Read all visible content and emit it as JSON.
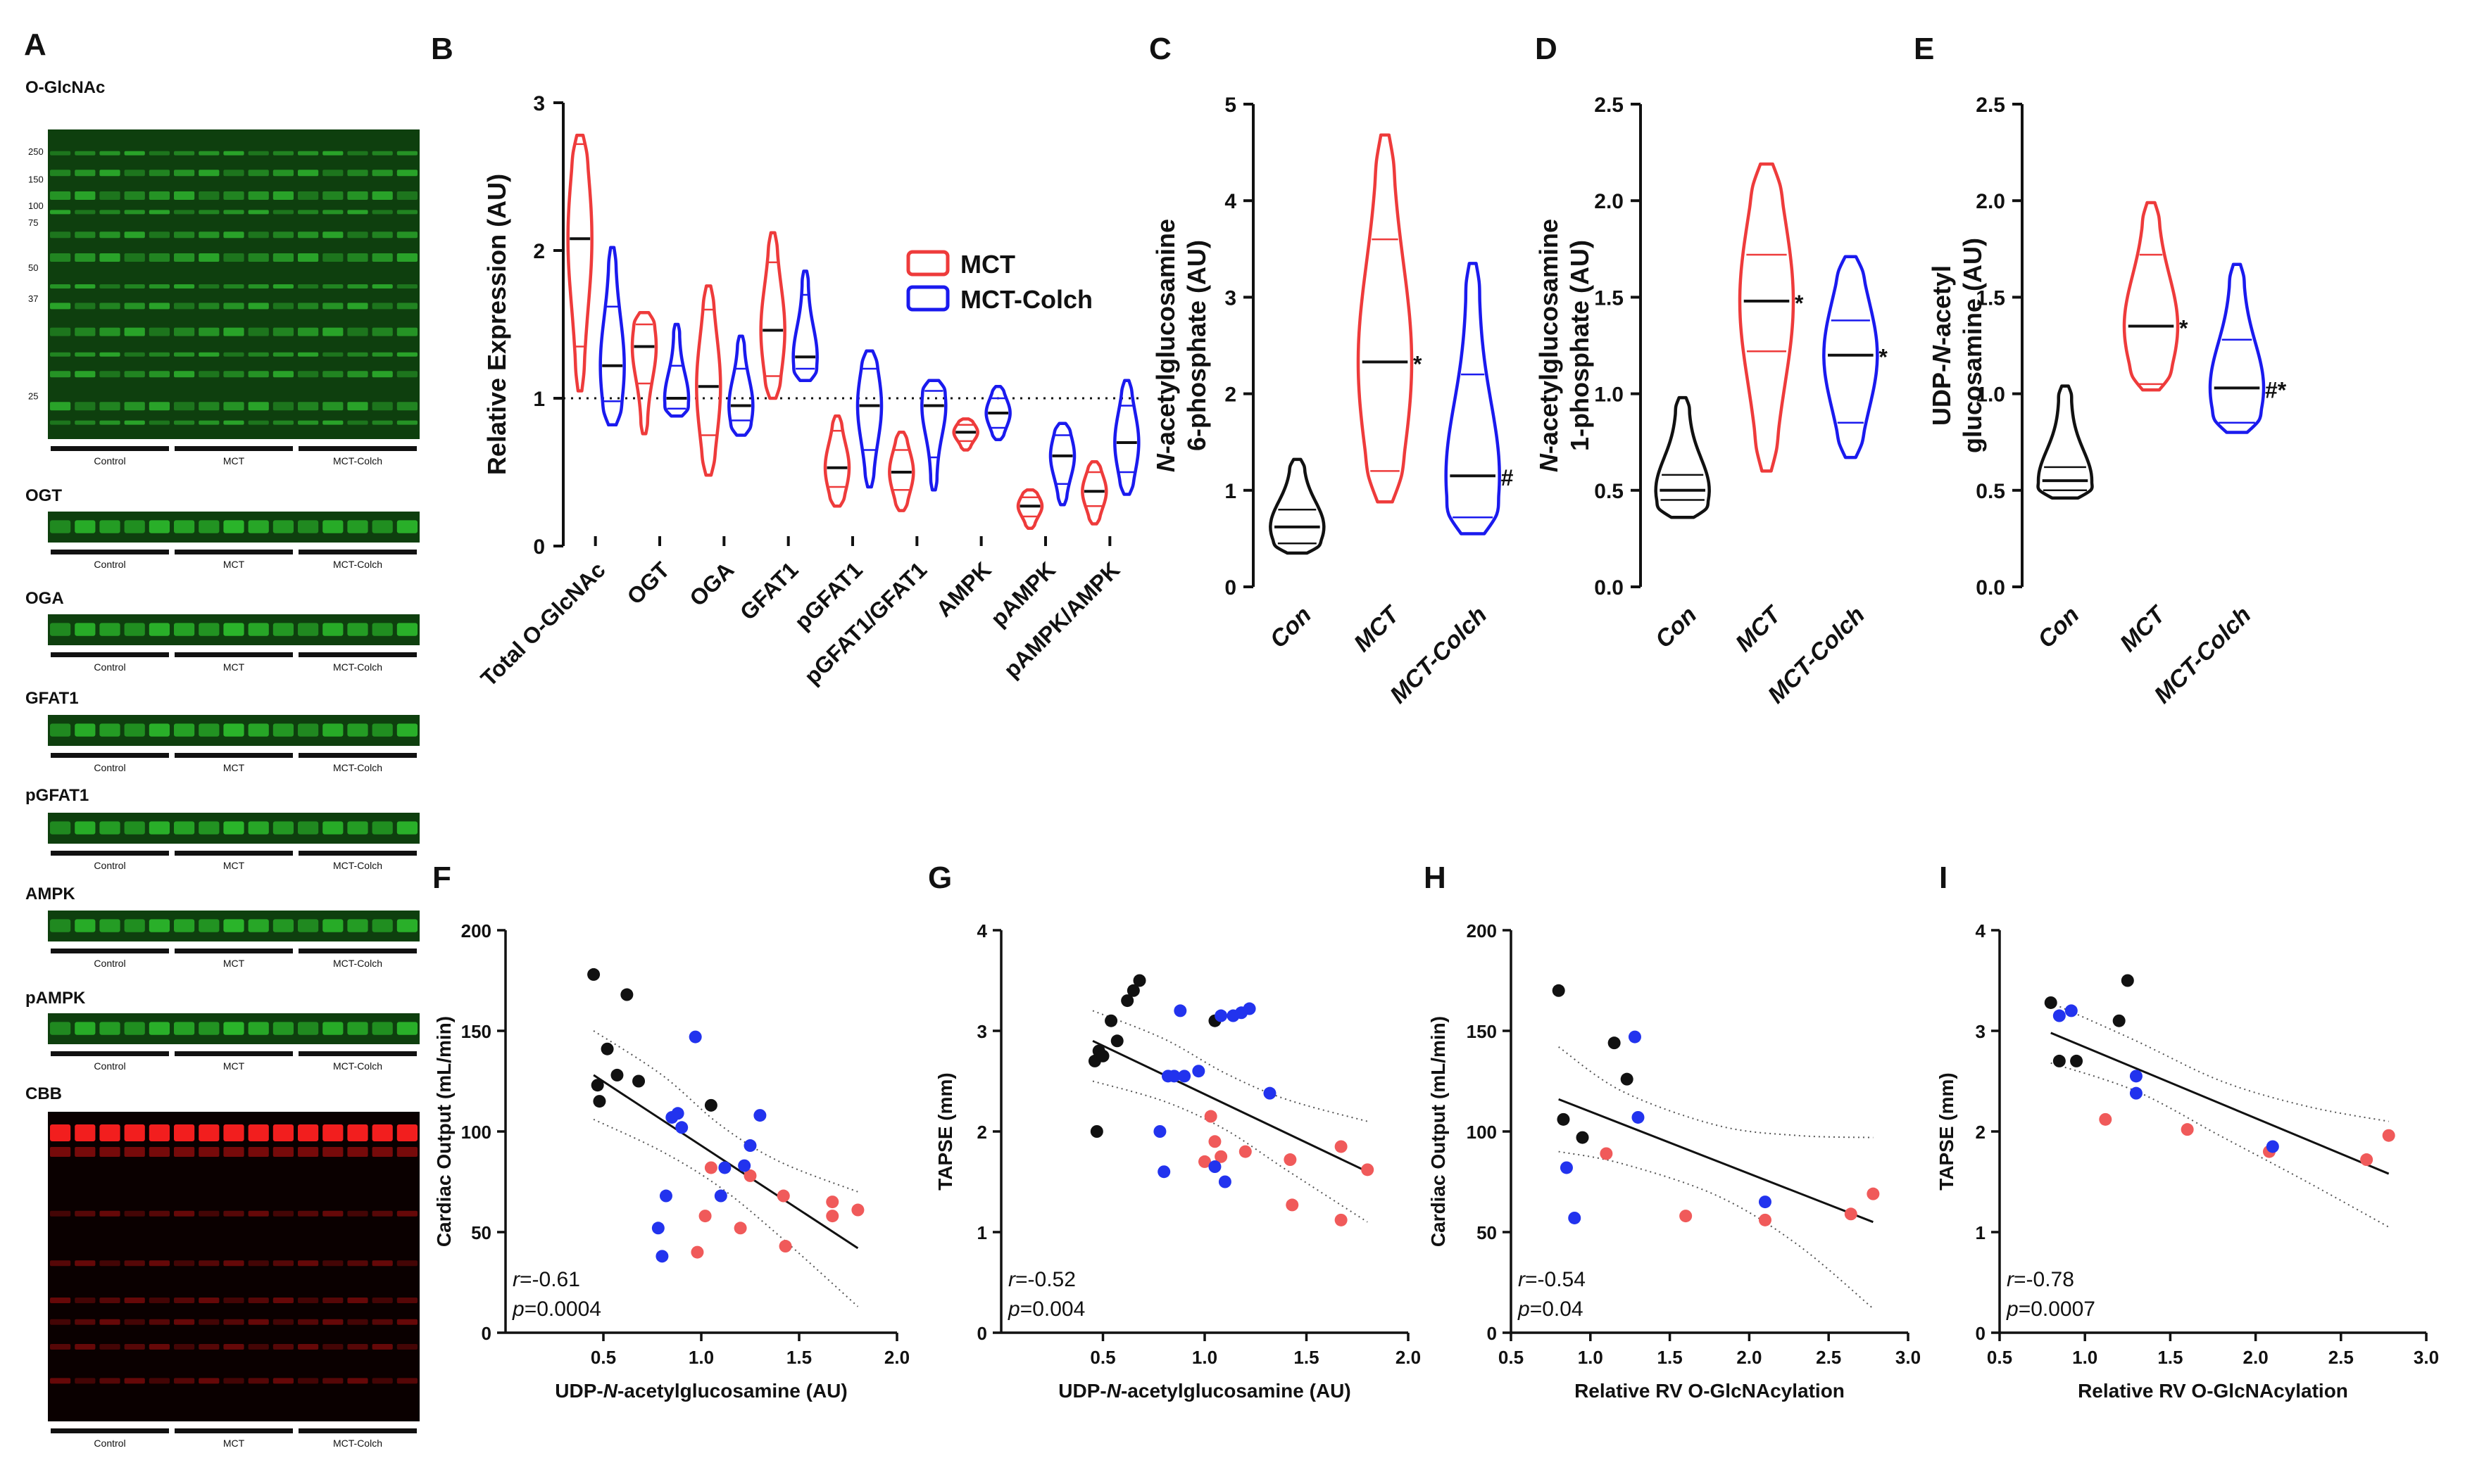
{
  "colors": {
    "con": "#111111",
    "mct": "#ee3b3b",
    "colch": "#1a1aee",
    "mct_dot": "#f05a5a",
    "colch_dot": "#2233ee"
  },
  "panel_letters": [
    "A",
    "B",
    "C",
    "D",
    "E",
    "F",
    "G",
    "H",
    "I"
  ],
  "blots": [
    {
      "name": "O-GlcNAc",
      "kind": "main",
      "color": "green",
      "markers": [
        "250",
        "150",
        "100",
        "75",
        "50",
        "37",
        "25"
      ],
      "groups": [
        "Control",
        "MCT",
        "MCT-Colch"
      ]
    },
    {
      "name": "OGT",
      "kind": "strip",
      "color": "green",
      "groups": [
        "Control",
        "MCT",
        "MCT-Colch"
      ]
    },
    {
      "name": "OGA",
      "kind": "strip",
      "color": "green",
      "groups": [
        "Control",
        "MCT",
        "MCT-Colch"
      ]
    },
    {
      "name": "GFAT1",
      "kind": "strip",
      "color": "green",
      "groups": [
        "Control",
        "MCT",
        "MCT-Colch"
      ]
    },
    {
      "name": "pGFAT1",
      "kind": "strip",
      "color": "green",
      "groups": [
        "Control",
        "MCT",
        "MCT-Colch"
      ]
    },
    {
      "name": "AMPK",
      "kind": "strip",
      "color": "green",
      "groups": [
        "Control",
        "MCT",
        "MCT-Colch"
      ]
    },
    {
      "name": "pAMPK",
      "kind": "strip",
      "color": "green",
      "groups": [
        "Control",
        "MCT",
        "MCT-Colch"
      ]
    },
    {
      "name": "CBB",
      "kind": "main",
      "color": "red",
      "groups": [
        "Control",
        "MCT",
        "MCT-Colch"
      ]
    }
  ],
  "chart_data": [
    {
      "panel": "B",
      "type": "violin",
      "title": "",
      "ylabel": "Relative Expression (AU)",
      "ylim": [
        0,
        3
      ],
      "yticks": [
        0,
        1,
        2,
        3
      ],
      "reference_line": 1,
      "categories": [
        "Total O-GlcNAc",
        "OGT",
        "OGA",
        "GFAT1",
        "pGFAT1",
        "pGFAT1/GFAT1",
        "AMPK",
        "pAMPK",
        "pAMPK/AMPK"
      ],
      "legend": [
        "MCT",
        "MCT-Colch"
      ],
      "series": [
        {
          "name": "MCT",
          "color": "#ee3b3b",
          "violins": [
            {
              "min": 1.05,
              "max": 2.78,
              "median": 2.08,
              "q1": 1.35,
              "q3": 2.72
            },
            {
              "min": 0.76,
              "max": 1.58,
              "median": 1.35,
              "q1": 1.1,
              "q3": 1.5
            },
            {
              "min": 0.48,
              "max": 1.76,
              "median": 1.08,
              "q1": 0.75,
              "q3": 1.6
            },
            {
              "min": 1.0,
              "max": 2.12,
              "median": 1.46,
              "q1": 1.15,
              "q3": 1.92
            },
            {
              "min": 0.27,
              "max": 0.88,
              "median": 0.53,
              "q1": 0.4,
              "q3": 0.78
            },
            {
              "min": 0.24,
              "max": 0.77,
              "median": 0.5,
              "q1": 0.38,
              "q3": 0.65
            },
            {
              "min": 0.65,
              "max": 0.86,
              "median": 0.77,
              "q1": 0.71,
              "q3": 0.82
            },
            {
              "min": 0.12,
              "max": 0.38,
              "median": 0.27,
              "q1": 0.2,
              "q3": 0.33
            },
            {
              "min": 0.15,
              "max": 0.57,
              "median": 0.37,
              "q1": 0.27,
              "q3": 0.5
            }
          ]
        },
        {
          "name": "MCT-Colch",
          "color": "#1a1aee",
          "violins": [
            {
              "min": 0.82,
              "max": 2.02,
              "median": 1.22,
              "q1": 0.98,
              "q3": 1.62
            },
            {
              "min": 0.88,
              "max": 1.5,
              "median": 1.0,
              "q1": 0.93,
              "q3": 1.22
            },
            {
              "min": 0.75,
              "max": 1.42,
              "median": 0.95,
              "q1": 0.85,
              "q3": 1.2
            },
            {
              "min": 1.12,
              "max": 1.86,
              "median": 1.28,
              "q1": 1.2,
              "q3": 1.7
            },
            {
              "min": 0.4,
              "max": 1.32,
              "median": 0.95,
              "q1": 0.65,
              "q3": 1.2
            },
            {
              "min": 0.38,
              "max": 1.12,
              "median": 0.95,
              "q1": 0.6,
              "q3": 1.05
            },
            {
              "min": 0.72,
              "max": 1.08,
              "median": 0.9,
              "q1": 0.8,
              "q3": 1.0
            },
            {
              "min": 0.28,
              "max": 0.83,
              "median": 0.61,
              "q1": 0.42,
              "q3": 0.75
            },
            {
              "min": 0.35,
              "max": 1.12,
              "median": 0.7,
              "q1": 0.5,
              "q3": 0.95
            }
          ]
        }
      ]
    },
    {
      "panel": "C",
      "type": "violin",
      "ylabel_lines": [
        "N-acetylglucosamine",
        "6-phosphate (AU)"
      ],
      "ylim": [
        0,
        5
      ],
      "yticks": [
        0,
        1,
        2,
        3,
        4,
        5
      ],
      "categories": [
        "Con",
        "MCT",
        "MCT-Colch"
      ],
      "violins": [
        {
          "group": "Con",
          "color": "#111111",
          "min": 0.35,
          "max": 1.32,
          "median": 0.62,
          "q1": 0.45,
          "q3": 0.8,
          "sig": ""
        },
        {
          "group": "MCT",
          "color": "#ee3b3b",
          "min": 0.88,
          "max": 4.68,
          "median": 2.33,
          "q1": 1.2,
          "q3": 3.6,
          "sig": "*"
        },
        {
          "group": "MCT-Colch",
          "color": "#1a1aee",
          "min": 0.55,
          "max": 3.35,
          "median": 1.15,
          "q1": 0.72,
          "q3": 2.2,
          "sig": "#"
        }
      ]
    },
    {
      "panel": "D",
      "type": "violin",
      "ylabel_lines": [
        "N-acetylglucosamine",
        "1-phosphate (AU)"
      ],
      "ylim": [
        0,
        2.5
      ],
      "yticks": [
        0.0,
        0.5,
        1.0,
        1.5,
        2.0,
        2.5
      ],
      "categories": [
        "Con",
        "MCT",
        "MCT-Colch"
      ],
      "violins": [
        {
          "group": "Con",
          "color": "#111111",
          "min": 0.36,
          "max": 0.98,
          "median": 0.5,
          "q1": 0.45,
          "q3": 0.58,
          "sig": ""
        },
        {
          "group": "MCT",
          "color": "#ee3b3b",
          "min": 0.6,
          "max": 2.19,
          "median": 1.48,
          "q1": 1.22,
          "q3": 1.72,
          "sig": "*"
        },
        {
          "group": "MCT-Colch",
          "color": "#1a1aee",
          "min": 0.67,
          "max": 1.71,
          "median": 1.2,
          "q1": 0.85,
          "q3": 1.38,
          "sig": "*"
        }
      ]
    },
    {
      "panel": "E",
      "type": "violin",
      "ylabel_lines": [
        "UDP-N-acetyl",
        "glucosamine (AU)"
      ],
      "ylim": [
        0,
        2.5
      ],
      "yticks": [
        0.0,
        0.5,
        1.0,
        1.5,
        2.0,
        2.5
      ],
      "categories": [
        "Con",
        "MCT",
        "MCT-Colch"
      ],
      "violins": [
        {
          "group": "Con",
          "color": "#111111",
          "min": 0.46,
          "max": 1.04,
          "median": 0.55,
          "q1": 0.5,
          "q3": 0.62,
          "sig": ""
        },
        {
          "group": "MCT",
          "color": "#ee3b3b",
          "min": 1.02,
          "max": 1.99,
          "median": 1.35,
          "q1": 1.05,
          "q3": 1.72,
          "sig": "*"
        },
        {
          "group": "MCT-Colch",
          "color": "#1a1aee",
          "min": 0.8,
          "max": 1.67,
          "median": 1.03,
          "q1": 0.85,
          "q3": 1.28,
          "sig": "#*"
        }
      ]
    },
    {
      "panel": "F",
      "type": "scatter",
      "xlabel": "UDP-N-acetylglucosamine (AU)",
      "ylabel": "Cardiac Output (mL/min)",
      "xlim": [
        0,
        2.0
      ],
      "xticks": [
        0.5,
        1.0,
        1.5,
        2.0
      ],
      "ylim": [
        0,
        200
      ],
      "yticks": [
        0,
        50,
        100,
        150,
        200
      ],
      "r": "r=-0.61",
      "p": "p=0.0004",
      "fit": {
        "x": [
          0.45,
          1.8
        ],
        "y": [
          128,
          42
        ]
      },
      "ci_upper": {
        "x": [
          0.45,
          0.8,
          1.1,
          1.4,
          1.8
        ],
        "y": [
          150,
          128,
          103,
          85,
          70
        ]
      },
      "ci_lower": {
        "x": [
          0.45,
          0.8,
          1.1,
          1.4,
          1.8
        ],
        "y": [
          106,
          90,
          72,
          48,
          13
        ]
      },
      "points": {
        "Con": [
          [
            0.45,
            178
          ],
          [
            0.47,
            123
          ],
          [
            0.48,
            115
          ],
          [
            0.52,
            141
          ],
          [
            0.57,
            128
          ],
          [
            0.62,
            168
          ],
          [
            0.68,
            125
          ],
          [
            1.05,
            113
          ]
        ],
        "MCT": [
          [
            0.98,
            40
          ],
          [
            1.02,
            58
          ],
          [
            1.05,
            82
          ],
          [
            1.2,
            52
          ],
          [
            1.25,
            78
          ],
          [
            1.42,
            68
          ],
          [
            1.43,
            43
          ],
          [
            1.67,
            58
          ],
          [
            1.67,
            65
          ],
          [
            1.8,
            61
          ]
        ],
        "MCT-Colch": [
          [
            0.78,
            52
          ],
          [
            0.8,
            38
          ],
          [
            0.82,
            68
          ],
          [
            0.85,
            107
          ],
          [
            0.88,
            109
          ],
          [
            0.9,
            102
          ],
          [
            0.97,
            147
          ],
          [
            1.1,
            68
          ],
          [
            1.12,
            82
          ],
          [
            1.22,
            83
          ],
          [
            1.25,
            93
          ],
          [
            1.3,
            108
          ]
        ]
      }
    },
    {
      "panel": "G",
      "type": "scatter",
      "xlabel": "UDP-N-acetylglucosamine (AU)",
      "ylabel": "TAPSE (mm)",
      "xlim": [
        0,
        2.0
      ],
      "xticks": [
        0.5,
        1.0,
        1.5,
        2.0
      ],
      "ylim": [
        0,
        4
      ],
      "yticks": [
        0,
        1,
        2,
        3,
        4
      ],
      "r": "r=-0.52",
      "p": "p=0.004",
      "fit": {
        "x": [
          0.45,
          1.8
        ],
        "y": [
          2.9,
          1.6
        ]
      },
      "ci_upper": {
        "x": [
          0.45,
          0.8,
          1.1,
          1.4,
          1.8
        ],
        "y": [
          3.2,
          2.92,
          2.58,
          2.32,
          2.1
        ]
      },
      "ci_lower": {
        "x": [
          0.45,
          0.8,
          1.1,
          1.4,
          1.8
        ],
        "y": [
          2.5,
          2.3,
          2.02,
          1.62,
          1.1
        ]
      },
      "points": {
        "Con": [
          [
            0.46,
            2.7
          ],
          [
            0.47,
            2.0
          ],
          [
            0.48,
            2.8
          ],
          [
            0.5,
            2.75
          ],
          [
            0.54,
            3.1
          ],
          [
            0.57,
            2.9
          ],
          [
            0.62,
            3.3
          ],
          [
            0.65,
            3.4
          ],
          [
            0.68,
            3.5
          ],
          [
            1.05,
            3.1
          ]
        ],
        "MCT": [
          [
            1.0,
            1.7
          ],
          [
            1.03,
            2.15
          ],
          [
            1.05,
            1.9
          ],
          [
            1.08,
            1.75
          ],
          [
            1.2,
            1.8
          ],
          [
            1.42,
            1.72
          ],
          [
            1.43,
            1.27
          ],
          [
            1.67,
            1.85
          ],
          [
            1.67,
            1.12
          ],
          [
            1.8,
            1.62
          ]
        ],
        "MCT-Colch": [
          [
            0.78,
            2.0
          ],
          [
            0.8,
            1.6
          ],
          [
            0.82,
            2.55
          ],
          [
            0.85,
            2.55
          ],
          [
            0.88,
            3.2
          ],
          [
            0.9,
            2.55
          ],
          [
            0.97,
            2.6
          ],
          [
            1.05,
            1.65
          ],
          [
            1.08,
            3.15
          ],
          [
            1.1,
            1.5
          ],
          [
            1.14,
            3.15
          ],
          [
            1.18,
            3.18
          ],
          [
            1.22,
            3.22
          ],
          [
            1.32,
            2.38
          ]
        ]
      }
    },
    {
      "panel": "H",
      "type": "scatter",
      "xlabel": "Relative RV O-GlcNAcylation",
      "ylabel": "Cardiac Output (mL/min)",
      "xlim": [
        0.5,
        3.0
      ],
      "xticks": [
        0.5,
        1.0,
        1.5,
        2.0,
        2.5,
        3.0
      ],
      "ylim": [
        0,
        200
      ],
      "yticks": [
        0,
        50,
        100,
        150,
        200
      ],
      "r": "r=-0.54",
      "p": "p=0.04",
      "fit": {
        "x": [
          0.8,
          2.78
        ],
        "y": [
          116,
          55
        ]
      },
      "ci_upper": {
        "x": [
          0.8,
          1.2,
          1.8,
          2.3,
          2.78
        ],
        "y": [
          142,
          120,
          103,
          98,
          97
        ]
      },
      "ci_lower": {
        "x": [
          0.8,
          1.2,
          1.8,
          2.3,
          2.78
        ],
        "y": [
          90,
          84,
          68,
          44,
          12
        ]
      },
      "points": {
        "Con": [
          [
            0.8,
            170
          ],
          [
            0.83,
            106
          ],
          [
            0.95,
            97
          ],
          [
            1.15,
            144
          ],
          [
            1.23,
            126
          ]
        ],
        "MCT": [
          [
            1.1,
            89
          ],
          [
            1.6,
            58
          ],
          [
            2.1,
            56
          ],
          [
            2.64,
            59
          ],
          [
            2.78,
            69
          ]
        ],
        "MCT-Colch": [
          [
            0.85,
            82
          ],
          [
            0.9,
            57
          ],
          [
            1.28,
            147
          ],
          [
            1.3,
            107
          ],
          [
            2.1,
            65
          ]
        ]
      }
    },
    {
      "panel": "I",
      "type": "scatter",
      "xlabel": "Relative RV O-GlcNAcylation",
      "ylabel": "TAPSE (mm)",
      "xlim": [
        0.5,
        3.0
      ],
      "xticks": [
        0.5,
        1.0,
        1.5,
        2.0,
        2.5,
        3.0
      ],
      "ylim": [
        0,
        4
      ],
      "yticks": [
        0,
        1,
        2,
        3,
        4
      ],
      "r": "r=-0.78",
      "p": "p=0.0007",
      "fit": {
        "x": [
          0.8,
          2.78
        ],
        "y": [
          2.98,
          1.58
        ]
      },
      "ci_upper": {
        "x": [
          0.8,
          1.3,
          1.8,
          2.3,
          2.78
        ],
        "y": [
          3.28,
          2.9,
          2.5,
          2.25,
          2.1
        ]
      },
      "ci_lower": {
        "x": [
          0.8,
          1.3,
          1.8,
          2.3,
          2.78
        ],
        "y": [
          2.68,
          2.4,
          1.95,
          1.5,
          1.05
        ]
      },
      "points": {
        "Con": [
          [
            0.8,
            3.28
          ],
          [
            0.85,
            2.7
          ],
          [
            0.95,
            2.7
          ],
          [
            1.2,
            3.1
          ],
          [
            1.25,
            3.5
          ]
        ],
        "MCT": [
          [
            1.12,
            2.12
          ],
          [
            1.6,
            2.02
          ],
          [
            2.08,
            1.8
          ],
          [
            2.65,
            1.72
          ],
          [
            2.78,
            1.96
          ]
        ],
        "MCT-Colch": [
          [
            0.85,
            3.15
          ],
          [
            0.92,
            3.2
          ],
          [
            1.3,
            2.55
          ],
          [
            1.3,
            2.38
          ],
          [
            2.1,
            1.85
          ]
        ]
      }
    }
  ]
}
